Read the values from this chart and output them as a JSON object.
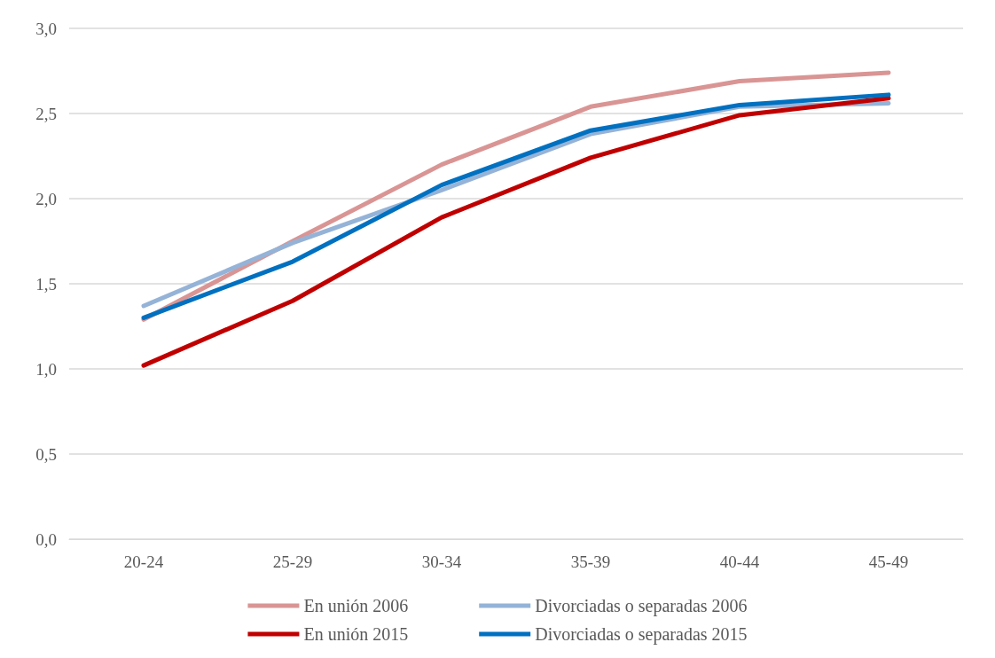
{
  "chart_data": {
    "type": "line",
    "categories": [
      "20-24",
      "25-29",
      "30-34",
      "35-39",
      "40-44",
      "45-49"
    ],
    "series": [
      {
        "name": "En unión 2006",
        "color": "#d99594",
        "values": [
          1.29,
          1.75,
          2.2,
          2.54,
          2.69,
          2.74
        ]
      },
      {
        "name": "Divorciadas o separadas 2006",
        "color": "#95b3d7",
        "values": [
          1.37,
          1.74,
          2.05,
          2.38,
          2.54,
          2.56
        ]
      },
      {
        "name": "En unión 2015",
        "color": "#c00000",
        "values": [
          1.02,
          1.4,
          1.89,
          2.24,
          2.49,
          2.59
        ]
      },
      {
        "name": "Divorciadas o separadas 2015",
        "color": "#0070c0",
        "values": [
          1.3,
          1.63,
          2.08,
          2.4,
          2.55,
          2.61
        ]
      }
    ],
    "ylim": [
      0,
      3
    ],
    "yticks": [
      {
        "value": 0,
        "label": "0,0"
      },
      {
        "value": 0.5,
        "label": "0,5"
      },
      {
        "value": 1,
        "label": "1,0"
      },
      {
        "value": 1.5,
        "label": "1,5"
      },
      {
        "value": 2,
        "label": "2,0"
      },
      {
        "value": 2.5,
        "label": "2,5"
      },
      {
        "value": 3,
        "label": "3,0"
      }
    ],
    "grid": "y",
    "legend": "bottom",
    "marker": "none",
    "line_style": "solid"
  }
}
